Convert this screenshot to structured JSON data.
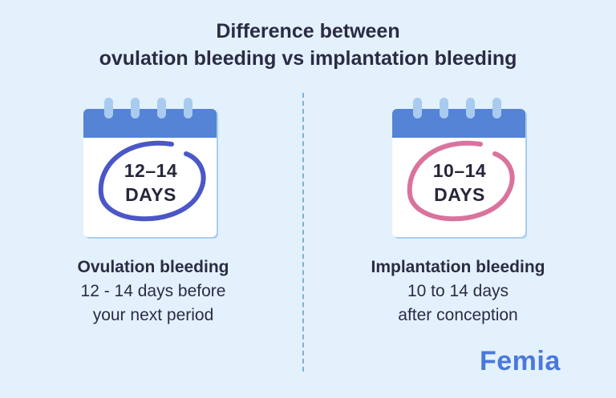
{
  "title": {
    "line1": "Difference between",
    "line2": "ovulation bleeding vs implantation bleeding"
  },
  "left": {
    "calendar_range": "12–14",
    "calendar_unit": "DAYS",
    "circle_color": "#4b57c7",
    "heading": "Ovulation bleeding",
    "line1": "12 - 14 days before",
    "line2": "your next period"
  },
  "right": {
    "calendar_range": "10–14",
    "calendar_unit": "DAYS",
    "circle_color": "#d9739e",
    "heading": "Implantation bleeding",
    "line1": "10 to 14 days",
    "line2": "after conception"
  },
  "brand": "Femia",
  "colors": {
    "background": "#e3f1fc",
    "calendar_header": "#5583d6",
    "brand": "#4a78dd"
  }
}
